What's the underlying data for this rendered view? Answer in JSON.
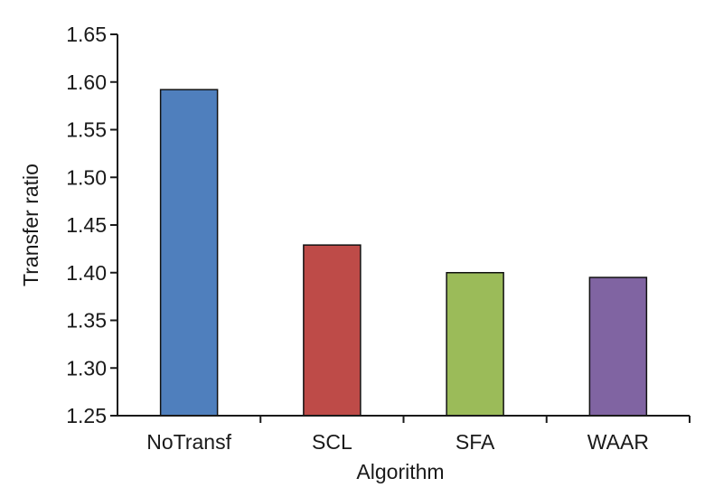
{
  "chart_data": {
    "type": "bar",
    "title": "",
    "xlabel": "Algorithm",
    "ylabel": "Transfer ratio",
    "categories": [
      "NoTransf",
      "SCL",
      "SFA",
      "WAAR"
    ],
    "values": [
      1.592,
      1.429,
      1.4,
      1.395
    ],
    "colors": [
      "#4f7fbd",
      "#be4b48",
      "#9bbb59",
      "#8064a2"
    ],
    "ylim": [
      1.25,
      1.65
    ],
    "yticks": [
      1.25,
      1.3,
      1.35,
      1.4,
      1.45,
      1.5,
      1.55,
      1.6,
      1.65
    ],
    "ytick_labels": [
      "1.25",
      "1.30",
      "1.35",
      "1.40",
      "1.45",
      "1.50",
      "1.55",
      "1.60",
      "1.65"
    ],
    "grid": false,
    "legend": "none"
  }
}
